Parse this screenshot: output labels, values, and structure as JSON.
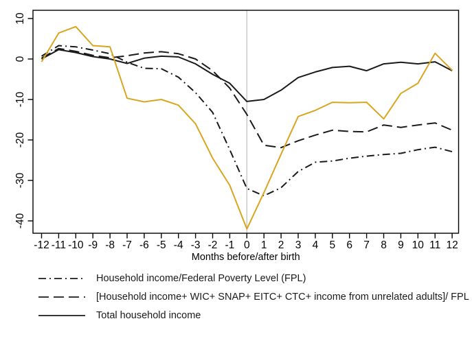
{
  "chart_data": {
    "type": "line",
    "title": "",
    "xlabel": "Months before/after birth",
    "ylabel": "",
    "x": [
      -12,
      -11,
      -10,
      -9,
      -8,
      -7,
      -6,
      -5,
      -4,
      -3,
      -2,
      -1,
      0,
      1,
      2,
      3,
      4,
      5,
      6,
      7,
      8,
      9,
      10,
      11,
      12
    ],
    "x_ticks": [
      -12,
      -11,
      -10,
      -9,
      -8,
      -7,
      -6,
      -5,
      -4,
      -3,
      -2,
      -1,
      0,
      1,
      2,
      3,
      4,
      5,
      6,
      7,
      8,
      9,
      10,
      11,
      12
    ],
    "y_ticks": [
      10,
      0,
      -10,
      -20,
      -30,
      -40
    ],
    "ylim": [
      -43,
      12
    ],
    "xlim": [
      -12.5,
      12.4
    ],
    "grid": false,
    "reference_line_x": 0,
    "reference_line_color": "#c2c2c2",
    "frame_color": "#000000",
    "legend_position": "bottom-left",
    "series": [
      {
        "name": "Household income/Federal Poverty Level (FPL)",
        "style": "dash-dot",
        "color": "#1a1a1a",
        "dash": "11 5 2 5",
        "in_legend": true,
        "values": [
          0.7,
          3.3,
          3.0,
          2.2,
          1.3,
          -0.8,
          -2.3,
          -2.4,
          -4.5,
          -8.3,
          -13.2,
          -22.4,
          -32.0,
          -33.8,
          -31.8,
          -27.8,
          -25.5,
          -25.2,
          -24.5,
          -24.0,
          -23.6,
          -23.3,
          -22.4,
          -21.8,
          -22.9
        ]
      },
      {
        "name": "[Household income+ WIC+ SNAP+ EITC+ CTC+ income from unrelated adults]/ FPL",
        "style": "long-dash",
        "color": "#1a1a1a",
        "dash": "15 7",
        "in_legend": true,
        "values": [
          0.2,
          2.6,
          1.9,
          0.9,
          0.3,
          0.8,
          1.5,
          1.8,
          1.3,
          0.0,
          -2.9,
          -7.2,
          -13.7,
          -21.3,
          -21.9,
          -20.2,
          -18.8,
          -17.6,
          -17.9,
          -18.0,
          -16.3,
          -16.9,
          -16.3,
          -15.8,
          -17.6
        ]
      },
      {
        "name": "Total household income",
        "style": "solid",
        "color": "#1a1a1a",
        "dash": "none",
        "in_legend": true,
        "values": [
          0.0,
          2.3,
          1.6,
          0.6,
          0.0,
          -1.1,
          0.2,
          0.7,
          0.5,
          -1.2,
          -3.8,
          -6.0,
          -10.5,
          -10.0,
          -7.7,
          -4.6,
          -3.2,
          -2.1,
          -1.8,
          -2.9,
          -1.2,
          -0.8,
          -1.2,
          -0.7,
          -2.9
        ]
      },
      {
        "name": "",
        "style": "solid",
        "color": "#d9a521",
        "dash": "none",
        "in_legend": false,
        "values": [
          -0.7,
          6.4,
          8.0,
          3.3,
          3.0,
          -9.7,
          -10.6,
          -10.0,
          -11.4,
          -16.0,
          -24.5,
          -31.2,
          -42.0,
          -33.0,
          -23.5,
          -14.2,
          -12.7,
          -10.7,
          -10.8,
          -10.7,
          -14.8,
          -8.5,
          -6.0,
          1.4,
          -2.8
        ]
      }
    ]
  }
}
